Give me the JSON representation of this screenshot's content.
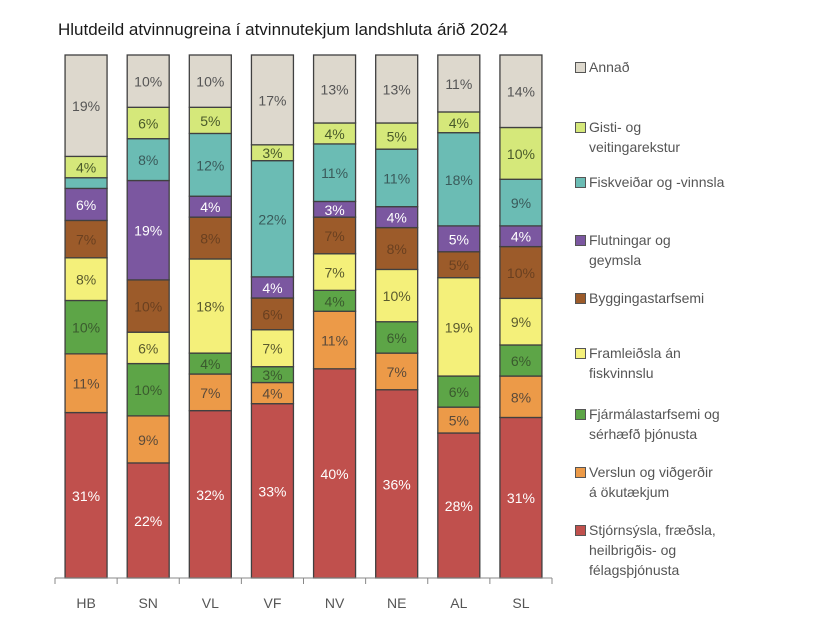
{
  "chart_data": {
    "type": "bar",
    "stacked": true,
    "title": "Hlutdeild atvinnugreina í atvinnutekjum landshluta árið 2024",
    "xlabel": "",
    "ylabel": "",
    "ylim": [
      0,
      100
    ],
    "grid": false,
    "legend_position": "right",
    "categories": [
      "HB",
      "SN",
      "VL",
      "VF",
      "NV",
      "NE",
      "AL",
      "SL"
    ],
    "series": [
      {
        "name": "Stjórnsýsla, fræðsla, heilbrigðis- og félagsþjónusta",
        "color": "#c0504d",
        "label_color": "#ffffff",
        "values": [
          31,
          22,
          32,
          33,
          40,
          36,
          28,
          31
        ]
      },
      {
        "name": "Verslun og viðgerðir á ökutækjum",
        "color": "#ec9a48",
        "label_color": "#5a4a3a",
        "values": [
          11,
          9,
          7,
          4,
          11,
          7,
          5,
          8
        ]
      },
      {
        "name": "Fjármálastarfsemi og sérhæfð þjónusta",
        "color": "#5da547",
        "label_color": "#3a5a2e",
        "values": [
          10,
          10,
          4,
          3,
          4,
          6,
          6,
          6
        ]
      },
      {
        "name": "Framleiðsla án fiskvinnslu",
        "color": "#f4f07a",
        "label_color": "#5a5a2e",
        "values": [
          8,
          6,
          18,
          7,
          7,
          10,
          19,
          9
        ]
      },
      {
        "name": "Byggingastarfsemi",
        "color": "#9c5b2a",
        "label_color": "#6a4020",
        "values": [
          7,
          10,
          8,
          6,
          7,
          8,
          5,
          10
        ]
      },
      {
        "name": "Flutningar og geymsla",
        "color": "#7b57a0",
        "label_color": "#ffffff",
        "values": [
          6,
          19,
          4,
          4,
          3,
          4,
          5,
          4
        ]
      },
      {
        "name": "Fiskveiðar og -vinnsla",
        "color": "#6bbcb4",
        "label_color": "#3a5a5a",
        "values": [
          2,
          8,
          12,
          22,
          11,
          11,
          18,
          9
        ],
        "labels": [
          "",
          "8%",
          "12%",
          "22%",
          "11%",
          "11%",
          "18%",
          "9%"
        ]
      },
      {
        "name": "Gisti- og veitingarekstur",
        "color": "#d5e87a",
        "label_color": "#4a5a2a",
        "values": [
          4,
          6,
          5,
          3,
          4,
          5,
          4,
          10
        ]
      },
      {
        "name": "Annað",
        "color": "#ddd8cd",
        "label_color": "#555555",
        "values": [
          19,
          10,
          10,
          17,
          13,
          13,
          11,
          14
        ]
      }
    ],
    "legend": [
      {
        "label": "Annað",
        "color": "#ddd8cd"
      },
      {
        "label": "Gisti- og\nveitingarekstur",
        "color": "#d5e87a"
      },
      {
        "label": "Fiskveiðar og -vinnsla",
        "color": "#6bbcb4"
      },
      {
        "label": "Flutningar og\ngeymsla",
        "color": "#7b57a0"
      },
      {
        "label": "Byggingastarfsemi",
        "color": "#9c5b2a"
      },
      {
        "label": "Framleiðsla án\nfiskvinnslu",
        "color": "#f4f07a"
      },
      {
        "label": "Fjármálastarfsemi og\nsérhæfð þjónusta",
        "color": "#5da547"
      },
      {
        "label": "Verslun og viðgerðir\ná ökutækjum",
        "color": "#ec9a48"
      },
      {
        "label": "Stjórnsýsla, fræðsla,\nheilbrigðis- og\nfélagsþjónusta",
        "color": "#c0504d"
      }
    ]
  }
}
